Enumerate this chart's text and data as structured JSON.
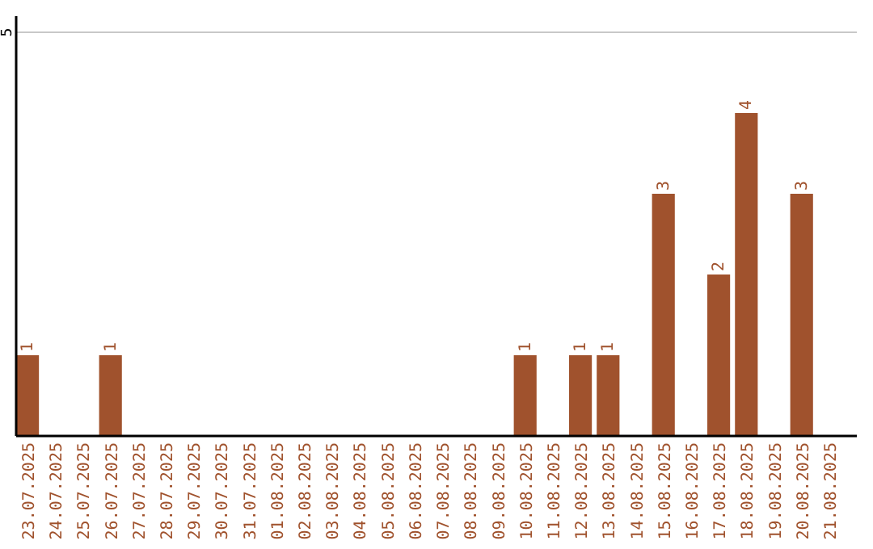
{
  "chart_data": {
    "type": "bar",
    "categories": [
      "23.07.2025",
      "24.07.2025",
      "25.07.2025",
      "26.07.2025",
      "27.07.2025",
      "28.07.2025",
      "29.07.2025",
      "30.07.2025",
      "31.07.2025",
      "01.08.2025",
      "02.08.2025",
      "03.08.2025",
      "04.08.2025",
      "05.08.2025",
      "06.08.2025",
      "07.08.2025",
      "08.08.2025",
      "09.08.2025",
      "10.08.2025",
      "11.08.2025",
      "12.08.2025",
      "13.08.2025",
      "14.08.2025",
      "15.08.2025",
      "16.08.2025",
      "17.08.2025",
      "18.08.2025",
      "19.08.2025",
      "20.08.2025",
      "21.08.2025"
    ],
    "values": [
      1,
      0,
      0,
      1,
      0,
      0,
      0,
      0,
      0,
      0,
      0,
      0,
      0,
      0,
      0,
      0,
      0,
      0,
      1,
      0,
      1,
      1,
      0,
      3,
      0,
      2,
      4,
      0,
      3,
      0
    ],
    "value_labels": [
      "1",
      null,
      null,
      "1",
      null,
      null,
      null,
      null,
      null,
      null,
      null,
      null,
      null,
      null,
      null,
      null,
      null,
      null,
      "1",
      null,
      "1",
      "1",
      null,
      "3",
      null,
      "2",
      "4",
      null,
      "3",
      null
    ],
    "color": "#a0522d",
    "ylim": [
      0,
      5.2
    ],
    "yticks": [
      5
    ],
    "grid": "y"
  }
}
